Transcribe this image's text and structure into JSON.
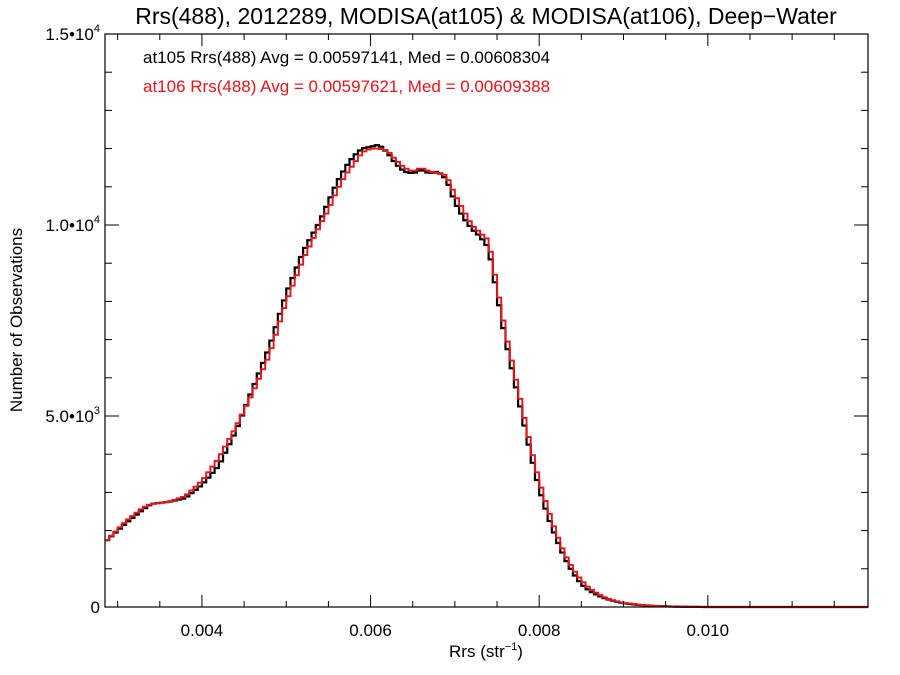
{
  "chart_data": {
    "type": "line",
    "title": "Rrs(488), 2012289, MODISA(at105) & MODISA(at106), Deep−Water",
    "xlabel": "Rrs (str",
    "xlabel_sup": "−1",
    "xlabel_close": ")",
    "ylabel": "Number of Observations",
    "xlim": [
      0.00285,
      0.0119
    ],
    "ylim": [
      0,
      15000
    ],
    "x_ticks": [
      {
        "value": 0.004,
        "label": "0.004"
      },
      {
        "value": 0.006,
        "label": "0.006"
      },
      {
        "value": 0.008,
        "label": "0.008"
      },
      {
        "value": 0.01,
        "label": "0.010"
      }
    ],
    "y_ticks": [
      {
        "value": 0,
        "label": "0",
        "sup": ""
      },
      {
        "value": 5000,
        "label": "5.0•10",
        "sup": "3"
      },
      {
        "value": 10000,
        "label": "1.0•10",
        "sup": "4"
      },
      {
        "value": 15000,
        "label": "1.5•10",
        "sup": "4"
      }
    ],
    "legend": [
      {
        "text": "at105 Rrs(488) Avg = 0.00597141, Med = 0.00608304",
        "color": "#000000"
      },
      {
        "text": "at106 Rrs(488) Avg = 0.00597621, Med = 0.00609388",
        "color": "#e8141c"
      }
    ],
    "grid": false,
    "series": [
      {
        "name": "at105",
        "color": "#000000",
        "x": [
          0.00285,
          0.0031,
          0.0033,
          0.0034,
          0.0036,
          0.0038,
          0.004,
          0.0042,
          0.0044,
          0.0046,
          0.0048,
          0.005,
          0.0052,
          0.0054,
          0.0055,
          0.0056,
          0.0057,
          0.0058,
          0.0059,
          0.006,
          0.0061,
          0.0062,
          0.0063,
          0.0064,
          0.0065,
          0.0066,
          0.0067,
          0.0068,
          0.0069,
          0.007,
          0.0071,
          0.0072,
          0.0073,
          0.0074,
          0.0075,
          0.0076,
          0.0077,
          0.0078,
          0.0079,
          0.008,
          0.0081,
          0.0082,
          0.0083,
          0.0084,
          0.0085,
          0.0086,
          0.0087,
          0.0088,
          0.0089,
          0.009,
          0.0092,
          0.0094,
          0.0096,
          0.0098,
          0.01,
          0.0105,
          0.011,
          0.0119
        ],
        "y": [
          1700,
          2200,
          2550,
          2700,
          2750,
          2850,
          3200,
          3700,
          4600,
          5700,
          6800,
          8200,
          9300,
          10100,
          10600,
          11100,
          11500,
          11800,
          12000,
          12050,
          12100,
          11900,
          11600,
          11400,
          11350,
          11450,
          11350,
          11400,
          11200,
          10600,
          10200,
          9900,
          9700,
          9400,
          8200,
          7000,
          6000,
          5000,
          4000,
          3100,
          2400,
          1800,
          1300,
          900,
          600,
          420,
          300,
          210,
          150,
          100,
          50,
          25,
          10,
          5,
          0,
          0,
          0,
          0
        ]
      },
      {
        "name": "at106",
        "color": "#e8141c",
        "x": [
          0.00285,
          0.0031,
          0.0033,
          0.0034,
          0.0036,
          0.0038,
          0.004,
          0.0042,
          0.0044,
          0.0046,
          0.0048,
          0.005,
          0.0052,
          0.0054,
          0.0055,
          0.0056,
          0.0057,
          0.0058,
          0.0059,
          0.006,
          0.0061,
          0.0062,
          0.0063,
          0.0064,
          0.0065,
          0.0066,
          0.0067,
          0.0068,
          0.0069,
          0.007,
          0.0071,
          0.0072,
          0.0073,
          0.0074,
          0.0075,
          0.0076,
          0.0077,
          0.0078,
          0.0079,
          0.008,
          0.0081,
          0.0082,
          0.0083,
          0.0084,
          0.0085,
          0.0086,
          0.0087,
          0.0088,
          0.0089,
          0.009,
          0.0092,
          0.0094,
          0.0096,
          0.0098,
          0.01,
          0.0105,
          0.011,
          0.0119
        ],
        "y": [
          1700,
          2250,
          2600,
          2700,
          2750,
          2900,
          3300,
          3900,
          4700,
          5600,
          6600,
          8000,
          9100,
          10000,
          10400,
          10900,
          11300,
          11600,
          11900,
          12000,
          12000,
          11950,
          11700,
          11500,
          11400,
          11500,
          11400,
          11350,
          11300,
          10800,
          10400,
          10000,
          9800,
          9600,
          8400,
          7200,
          6200,
          5200,
          4200,
          3300,
          2600,
          1950,
          1400,
          1000,
          700,
          480,
          340,
          230,
          160,
          110,
          55,
          25,
          10,
          5,
          0,
          0,
          0,
          0
        ]
      }
    ]
  }
}
